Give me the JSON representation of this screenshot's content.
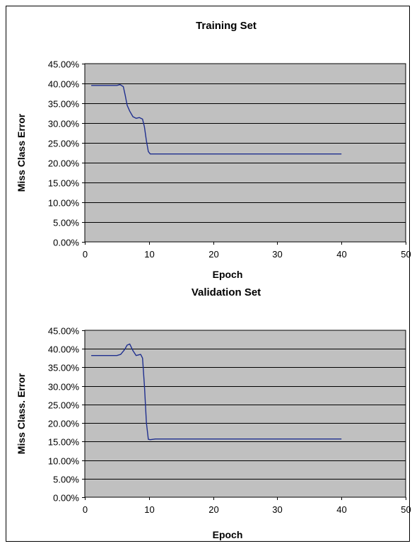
{
  "chart_data": [
    {
      "type": "line",
      "title": "Training Set",
      "xlabel": "Epoch",
      "ylabel": "Miss Class Error",
      "xlim": [
        0,
        50
      ],
      "ylim": [
        0,
        0.45
      ],
      "xticks": [
        "0",
        "10",
        "20",
        "30",
        "40",
        "50"
      ],
      "yticks": [
        "0.00%",
        "5.00%",
        "10.00%",
        "15.00%",
        "20.00%",
        "25.00%",
        "30.00%",
        "35.00%",
        "40.00%",
        "45.00%"
      ],
      "grid": true,
      "plot_bg": "#c0c0c0",
      "line_color": "#1f2f8f",
      "series": [
        {
          "x": [
            1,
            2,
            3,
            4,
            5,
            5.5,
            6,
            6.3,
            6.6,
            7,
            7.5,
            8,
            8.5,
            9,
            9.3,
            9.6,
            9.9,
            10.2,
            11,
            20,
            30,
            40
          ],
          "y": [
            0.395,
            0.395,
            0.395,
            0.395,
            0.395,
            0.397,
            0.392,
            0.37,
            0.345,
            0.33,
            0.316,
            0.312,
            0.314,
            0.31,
            0.29,
            0.255,
            0.228,
            0.222,
            0.222,
            0.222,
            0.222,
            0.222
          ]
        }
      ]
    },
    {
      "type": "line",
      "title": "Validation Set",
      "xlabel": "Epoch",
      "ylabel": "Miss Class. Error",
      "xlim": [
        0,
        50
      ],
      "ylim": [
        0,
        0.45
      ],
      "xticks": [
        "0",
        "10",
        "20",
        "30",
        "40",
        "50"
      ],
      "yticks": [
        "0.00%",
        "5.00%",
        "10.00%",
        "15.00%",
        "20.00%",
        "25.00%",
        "30.00%",
        "35.00%",
        "40.00%",
        "45.00%"
      ],
      "grid": true,
      "plot_bg": "#c0c0c0",
      "line_color": "#1f2f8f",
      "series": [
        {
          "x": [
            1,
            3,
            5,
            5.6,
            6.2,
            6.6,
            7,
            7.5,
            8,
            8.7,
            9,
            9.3,
            9.6,
            9.9,
            10.2,
            11,
            20,
            30,
            40
          ],
          "y": [
            0.382,
            0.382,
            0.382,
            0.385,
            0.398,
            0.41,
            0.413,
            0.395,
            0.382,
            0.385,
            0.375,
            0.3,
            0.2,
            0.156,
            0.155,
            0.157,
            0.157,
            0.157,
            0.157
          ]
        }
      ]
    }
  ]
}
